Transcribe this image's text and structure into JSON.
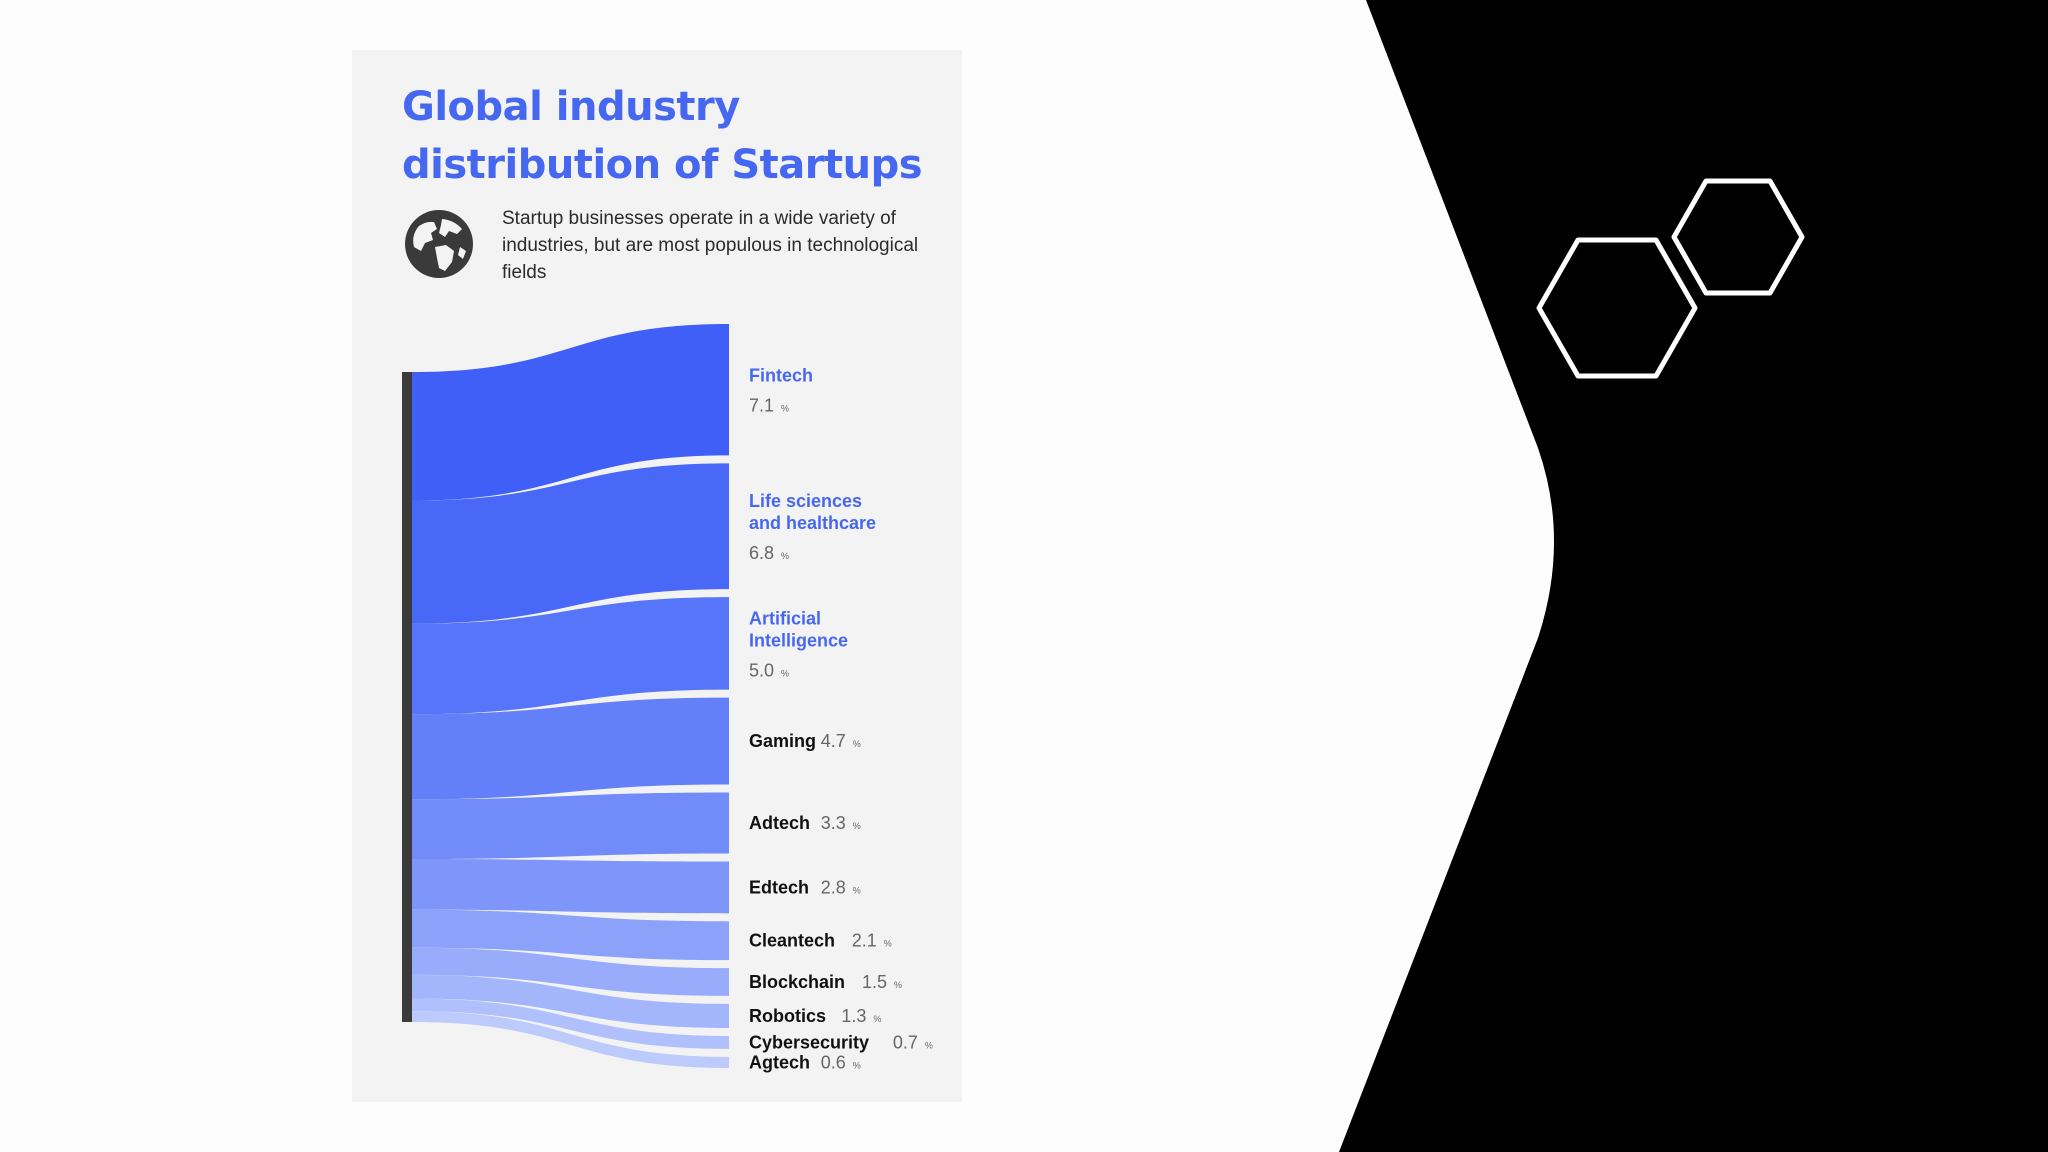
{
  "slide": {
    "backdrop_color": "#000000",
    "background_color": "#fdfdfd",
    "hexagon_color": "#ffffff"
  },
  "card": {
    "background_color": "#f3f3f4",
    "title": "Global industry distribution of Startups",
    "subtitle": "Startup businesses operate in a wide variety of industries, but are most populous in technological fields",
    "globe_icon": "globe-icon"
  },
  "chart_data": {
    "type": "sankey",
    "title": "Global industry distribution of Startups",
    "unit": "%",
    "source_color": "#3a3a3a",
    "flows": [
      {
        "label": "Fintech",
        "value": 7.1,
        "value_text": "7.1",
        "color": "#3f5ff7",
        "label_color": "#4668f0"
      },
      {
        "label": "Life sciences and healthcare",
        "label_lines": [
          "Life sciences",
          "and healthcare"
        ],
        "value": 6.8,
        "value_text": "6.8",
        "color": "#4a68f8",
        "label_color": "#4668f0"
      },
      {
        "label": "Artificial Intelligence",
        "label_lines": [
          "Artificial",
          "Intelligence"
        ],
        "value": 5.0,
        "value_text": "5.0",
        "color": "#5775f8",
        "label_color": "#4668f0"
      },
      {
        "label": "Gaming",
        "value": 4.7,
        "value_text": "4.7",
        "color": "#6480f9",
        "label_color": "#111111"
      },
      {
        "label": "Adtech",
        "value": 3.3,
        "value_text": "3.3",
        "color": "#718bf9",
        "label_color": "#111111"
      },
      {
        "label": "Edtech",
        "value": 2.8,
        "value_text": "2.8",
        "color": "#7e96fa",
        "label_color": "#111111"
      },
      {
        "label": "Cleantech",
        "value": 2.1,
        "value_text": "2.1",
        "color": "#8ba1fa",
        "label_color": "#111111"
      },
      {
        "label": "Blockchain",
        "value": 1.5,
        "value_text": "1.5",
        "color": "#98acfb",
        "label_color": "#111111"
      },
      {
        "label": "Robotics",
        "value": 1.3,
        "value_text": "1.3",
        "color": "#a4b6fb",
        "label_color": "#111111"
      },
      {
        "label": "Cybersecurity",
        "value": 0.7,
        "value_text": "0.7",
        "color": "#b0c0fc",
        "label_color": "#111111"
      },
      {
        "label": "Agtech",
        "value": 0.6,
        "value_text": "0.6",
        "color": "#bccafc",
        "label_color": "#111111"
      }
    ]
  }
}
